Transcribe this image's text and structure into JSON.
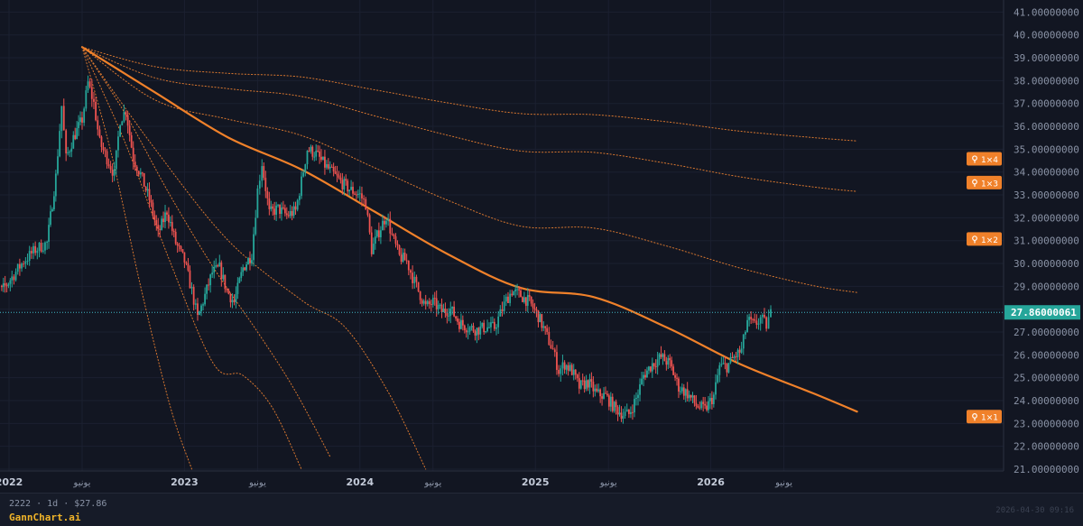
{
  "chart_data": {
    "type": "candlestick",
    "ylim": [
      21,
      41.2
    ],
    "y_ticks": [
      21,
      22,
      23,
      24,
      25,
      26,
      27,
      28,
      29,
      30,
      31,
      32,
      33,
      34,
      35,
      36,
      37,
      38,
      39,
      40,
      41
    ],
    "x_ticks": [
      {
        "label": "2022",
        "t": 0
      },
      {
        "label": "يونيو",
        "t": 5
      },
      {
        "label": "2023",
        "t": 12
      },
      {
        "label": "يونيو",
        "t": 17
      },
      {
        "label": "2024",
        "t": 24
      },
      {
        "label": "يونيو",
        "t": 29
      },
      {
        "label": "2025",
        "t": 36
      },
      {
        "label": "يونيو",
        "t": 41
      },
      {
        "label": "2026",
        "t": 48
      },
      {
        "label": "يونيو",
        "t": 53
      }
    ],
    "last_price": "27.86000061",
    "last_value": 27.86,
    "up_color": "#26a69a",
    "down_color": "#ef5350",
    "price_path": [
      [
        -1.5,
        30.5
      ],
      [
        -1,
        29.3
      ],
      [
        -0.5,
        28.8
      ],
      [
        0.2,
        29.4
      ],
      [
        1,
        30.1
      ],
      [
        1.8,
        30.6
      ],
      [
        2.6,
        30.9
      ],
      [
        3.2,
        33.8
      ],
      [
        3.6,
        36.9
      ],
      [
        3.9,
        34.6
      ],
      [
        4.4,
        35.5
      ],
      [
        5,
        36.3
      ],
      [
        5.4,
        37.9
      ],
      [
        5.8,
        37.0
      ],
      [
        6.2,
        35.3
      ],
      [
        6.7,
        34.6
      ],
      [
        7.2,
        33.9
      ],
      [
        7.6,
        36.3
      ],
      [
        8,
        36.7
      ],
      [
        8.5,
        34.6
      ],
      [
        9,
        33.9
      ],
      [
        9.6,
        32.8
      ],
      [
        10.2,
        31.3
      ],
      [
        10.8,
        32.3
      ],
      [
        11.4,
        30.9
      ],
      [
        12,
        30.1
      ],
      [
        12.5,
        28.8
      ],
      [
        12.9,
        27.6
      ],
      [
        13.4,
        28.6
      ],
      [
        13.9,
        29.6
      ],
      [
        14.4,
        29.8
      ],
      [
        14.9,
        28.8
      ],
      [
        15.4,
        28.3
      ],
      [
        16,
        29.8
      ],
      [
        16.6,
        30.4
      ],
      [
        17,
        33.2
      ],
      [
        17.3,
        34.4
      ],
      [
        17.8,
        32.2
      ],
      [
        18.4,
        32.4
      ],
      [
        19,
        32.1
      ],
      [
        19.6,
        32.3
      ],
      [
        20,
        33.6
      ],
      [
        20.4,
        35.0
      ],
      [
        21,
        34.8
      ],
      [
        21.6,
        34.3
      ],
      [
        22.2,
        33.9
      ],
      [
        22.8,
        33.5
      ],
      [
        23.4,
        33.2
      ],
      [
        24,
        33.0
      ],
      [
        24.4,
        32.6
      ],
      [
        24.8,
        30.6
      ],
      [
        25.3,
        31.4
      ],
      [
        25.8,
        32.1
      ],
      [
        26.2,
        31.2
      ],
      [
        26.7,
        30.3
      ],
      [
        27.2,
        30.1
      ],
      [
        27.6,
        29.4
      ],
      [
        28,
        28.8
      ],
      [
        28.5,
        28.1
      ],
      [
        29,
        28.3
      ],
      [
        29.6,
        27.9
      ],
      [
        30.2,
        28.0
      ],
      [
        30.8,
        27.4
      ],
      [
        31.4,
        27.2
      ],
      [
        32,
        27.1
      ],
      [
        32.6,
        27.2
      ],
      [
        33.2,
        27.2
      ],
      [
        33.6,
        27.8
      ],
      [
        34,
        28.4
      ],
      [
        34.4,
        28.8
      ],
      [
        35,
        28.6
      ],
      [
        35.6,
        28.3
      ],
      [
        36.2,
        27.7
      ],
      [
        36.8,
        26.8
      ],
      [
        37.2,
        26.2
      ],
      [
        37.6,
        25.3
      ],
      [
        38,
        25.6
      ],
      [
        38.5,
        25.3
      ],
      [
        39,
        24.6
      ],
      [
        39.6,
        24.8
      ],
      [
        40.2,
        24.3
      ],
      [
        40.8,
        24.2
      ],
      [
        41.4,
        23.7
      ],
      [
        42,
        23.4
      ],
      [
        42.4,
        23.4
      ],
      [
        42.9,
        24.1
      ],
      [
        43.4,
        25.1
      ],
      [
        44,
        25.6
      ],
      [
        44.6,
        25.9
      ],
      [
        45.2,
        25.6
      ],
      [
        45.8,
        24.6
      ],
      [
        46.4,
        24.3
      ],
      [
        47,
        23.8
      ],
      [
        47.6,
        23.6
      ],
      [
        48.2,
        24.2
      ],
      [
        48.6,
        25.5
      ],
      [
        49.1,
        25.5
      ],
      [
        49.6,
        25.9
      ],
      [
        50.1,
        26.2
      ],
      [
        50.5,
        27.5
      ],
      [
        51,
        27.3
      ],
      [
        51.4,
        27.6
      ],
      [
        51.8,
        27.3
      ],
      [
        52.1,
        27.8
      ]
    ],
    "gann_lines": [
      {
        "label": "1×4",
        "value": 34.56,
        "points": [
          [
            5,
            39.47
          ],
          [
            10,
            38.61
          ],
          [
            15,
            38.32
          ],
          [
            20,
            38.16
          ],
          [
            25,
            37.6
          ],
          [
            30,
            37.03
          ],
          [
            35,
            36.56
          ],
          [
            40,
            36.51
          ],
          [
            45,
            36.2
          ],
          [
            50,
            35.79
          ],
          [
            55,
            35.51
          ],
          [
            58,
            35.36
          ]
        ],
        "style": "dotted"
      },
      {
        "label": "1×3",
        "value": 33.52,
        "points": [
          [
            5,
            39.47
          ],
          [
            10,
            38.12
          ],
          [
            15,
            37.65
          ],
          [
            20,
            37.31
          ],
          [
            25,
            36.46
          ],
          [
            30,
            35.61
          ],
          [
            35,
            34.92
          ],
          [
            40,
            34.86
          ],
          [
            45,
            34.38
          ],
          [
            50,
            33.79
          ],
          [
            55,
            33.35
          ],
          [
            58,
            33.15
          ]
        ],
        "style": "dotted"
      },
      {
        "label": "1×2",
        "value": 31.05,
        "points": [
          [
            5,
            39.47
          ],
          [
            10,
            37.15
          ],
          [
            15,
            36.31
          ],
          [
            20,
            35.6
          ],
          [
            25,
            34.19
          ],
          [
            30,
            32.77
          ],
          [
            35,
            31.63
          ],
          [
            40,
            31.55
          ],
          [
            45,
            30.76
          ],
          [
            50,
            29.8
          ],
          [
            55,
            29.03
          ],
          [
            58,
            28.73
          ]
        ],
        "style": "dotted"
      },
      {
        "label": "1×1",
        "value": 23.28,
        "points": [
          [
            5,
            39.47
          ],
          [
            10,
            37.48
          ],
          [
            15,
            35.51
          ],
          [
            20,
            34.11
          ],
          [
            25,
            32.27
          ],
          [
            30,
            30.41
          ],
          [
            35,
            28.93
          ],
          [
            40,
            28.53
          ],
          [
            45,
            27.2
          ],
          [
            50,
            25.6
          ],
          [
            55,
            24.32
          ],
          [
            58,
            23.52
          ]
        ],
        "style": "solid"
      },
      {
        "points": [
          [
            5,
            39.47
          ],
          [
            8,
            36.5
          ],
          [
            11,
            33.0
          ],
          [
            14,
            29.8
          ],
          [
            17,
            27.0
          ],
          [
            19.5,
            24.5
          ],
          [
            22,
            21.5
          ]
        ],
        "style": "dotted"
      },
      {
        "points": [
          [
            5,
            39.47
          ],
          [
            10,
            35.0
          ],
          [
            15,
            31.0
          ],
          [
            20,
            28.4
          ],
          [
            23,
            27.2
          ],
          [
            26,
            24.3
          ],
          [
            28.5,
            21.0
          ]
        ],
        "style": "dotted"
      },
      {
        "points": [
          [
            5,
            39.47
          ],
          [
            8,
            35.2
          ],
          [
            11,
            30.1
          ],
          [
            14,
            25.6
          ],
          [
            16,
            25.1
          ],
          [
            18,
            23.7
          ],
          [
            20,
            21.0
          ]
        ],
        "style": "dotted"
      },
      {
        "points": [
          [
            5,
            39.47
          ],
          [
            7,
            34.8
          ],
          [
            9,
            29.0
          ],
          [
            11,
            23.8
          ],
          [
            12.5,
            21.0
          ]
        ],
        "style": "dotted"
      }
    ]
  },
  "footer": {
    "symbol_info": "2222 · 1d · $27.86",
    "brand": "GannChart.ai",
    "timestamp": "2026-04-30 09:16"
  }
}
